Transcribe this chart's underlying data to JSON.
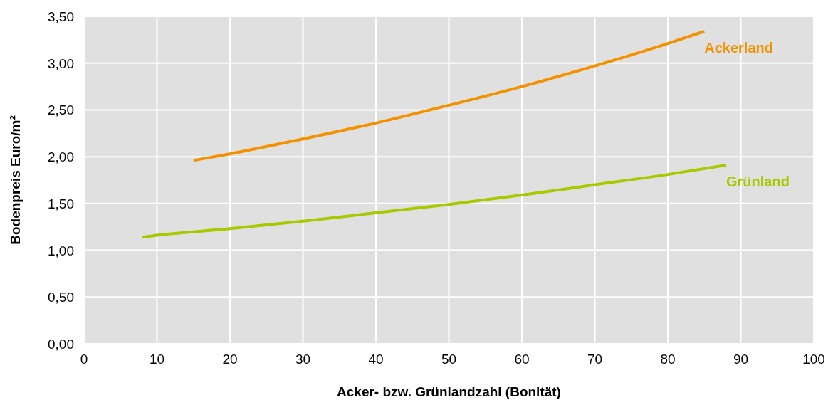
{
  "chart_data": {
    "type": "line",
    "xlabel": "Acker- bzw. Grünlandzahl (Bonität)",
    "ylabel": "Bodenpreis Euro/m²",
    "xlim": [
      0,
      100
    ],
    "xticks": [
      0,
      10,
      20,
      30,
      40,
      50,
      60,
      70,
      80,
      90,
      100
    ],
    "ylim": [
      0,
      3.5
    ],
    "yticks": [
      {
        "value": 0,
        "label": "0,00"
      },
      {
        "value": 0.5,
        "label": "0,50"
      },
      {
        "value": 1,
        "label": "1,00"
      },
      {
        "value": 1.5,
        "label": "1,50"
      },
      {
        "value": 2,
        "label": "2,00"
      },
      {
        "value": 2.5,
        "label": "2,50"
      },
      {
        "value": 3,
        "label": "3,00"
      },
      {
        "value": 3.5,
        "label": "3,50"
      }
    ],
    "grid": true,
    "marker": "none",
    "line_style": "solid",
    "series": [
      {
        "name": "Ackerland",
        "color": "#f39200",
        "x": [
          15,
          20,
          30,
          40,
          50,
          60,
          70,
          80,
          85
        ],
        "values": [
          1.96,
          2.03,
          2.19,
          2.36,
          2.55,
          2.75,
          2.97,
          3.21,
          3.34
        ]
      },
      {
        "name": "Grünland",
        "color": "#a8c800",
        "x": [
          8,
          10,
          20,
          30,
          40,
          50,
          60,
          70,
          80,
          88
        ],
        "values": [
          1.14,
          1.16,
          1.23,
          1.31,
          1.4,
          1.49,
          1.59,
          1.7,
          1.81,
          1.91
        ]
      }
    ]
  }
}
